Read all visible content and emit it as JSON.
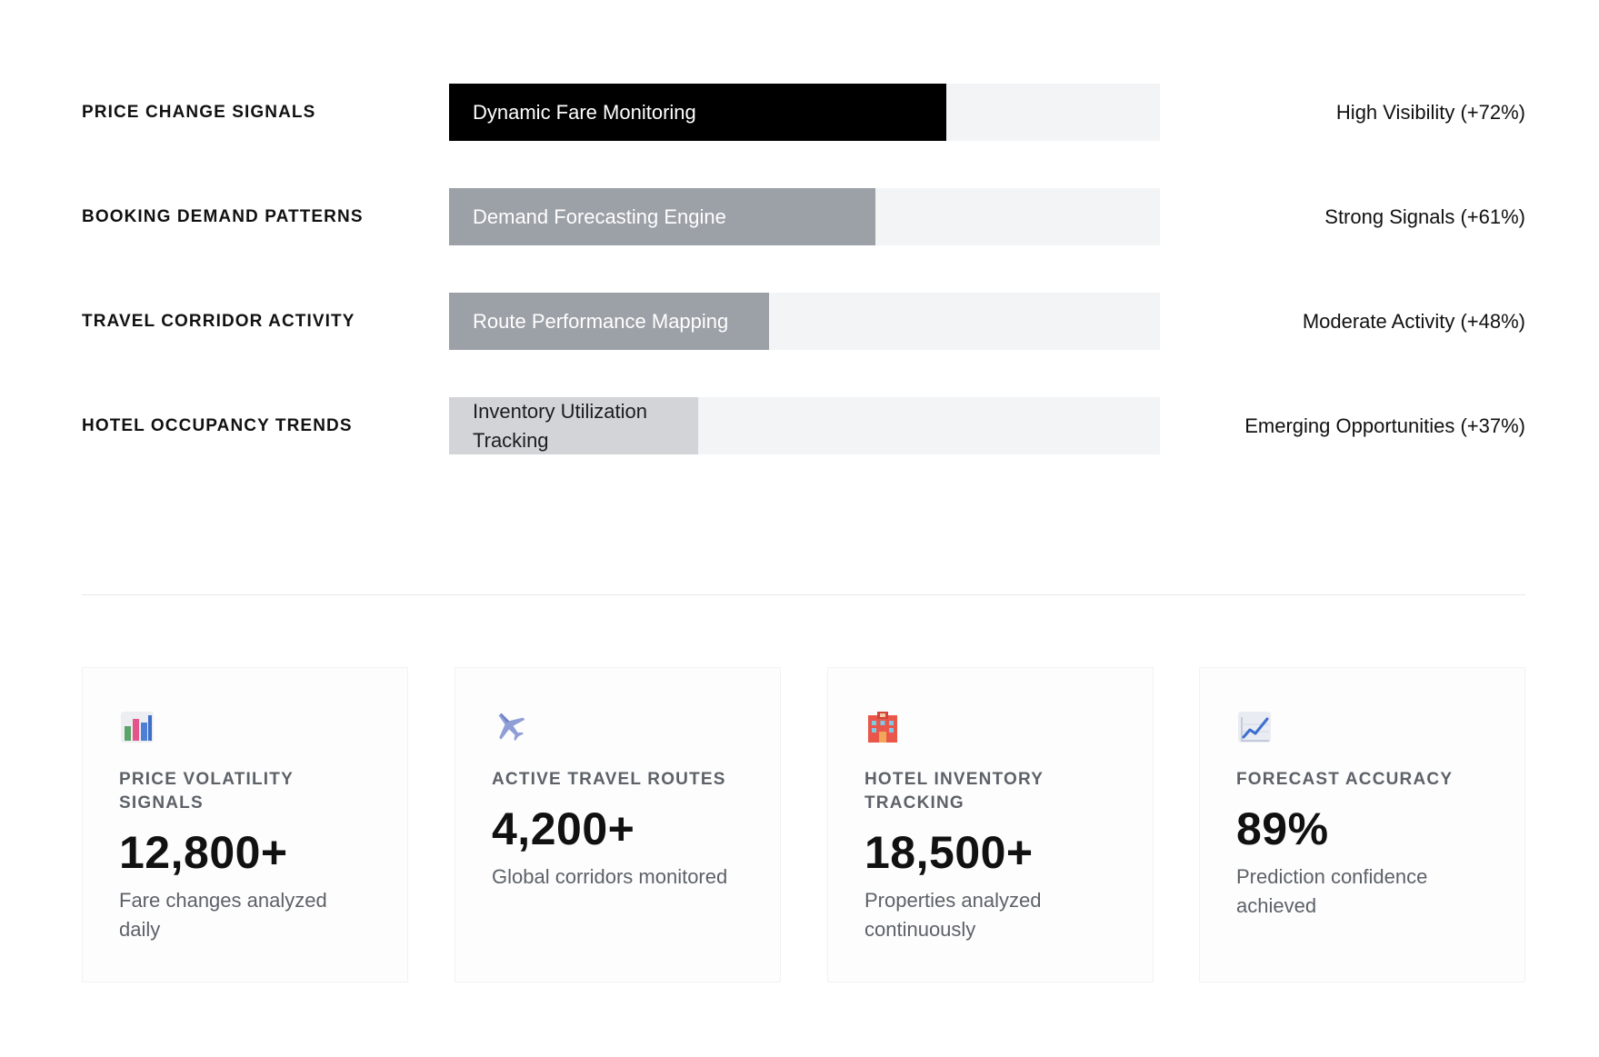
{
  "colors": {
    "bar_track": "#f3f4f5",
    "fill_dark": "#000000",
    "fill_mid": "#9ca0a7",
    "fill_light": "#d2d4d8",
    "label_muted": "#5d6168"
  },
  "signals": [
    {
      "label": "PRICE CHANGE SIGNALS",
      "bar_text": "Dynamic Fare Monitoring",
      "fill_percent": 70,
      "status": "High Visibility (+72%)"
    },
    {
      "label": "BOOKING DEMAND PATTERNS",
      "bar_text": "Demand Forecasting Engine",
      "fill_percent": 60,
      "status": "Strong Signals (+61%)"
    },
    {
      "label": "TRAVEL CORRIDOR ACTIVITY",
      "bar_text": "Route Performance Mapping",
      "fill_percent": 45,
      "status": "Moderate Activity (+48%)"
    },
    {
      "label": "HOTEL OCCUPANCY TRENDS",
      "bar_text": "Inventory Utilization Tracking",
      "fill_percent": 35,
      "status": "Emerging Opportunities (+37%)"
    }
  ],
  "metrics": [
    {
      "icon": "bar-chart-icon",
      "label": "PRICE VOLATILITY SIGNALS",
      "value": "12,800+",
      "description": "Fare changes analyzed daily"
    },
    {
      "icon": "airplane-icon",
      "label": "ACTIVE TRAVEL ROUTES",
      "value": "4,200+",
      "description": "Global corridors monitored"
    },
    {
      "icon": "hotel-icon",
      "label": "HOTEL INVENTORY TRACKING",
      "value": "18,500+",
      "description": "Properties analyzed continuously"
    },
    {
      "icon": "trend-up-icon",
      "label": "FORECAST ACCURACY",
      "value": "89%",
      "description": "Prediction confidence achieved"
    }
  ]
}
